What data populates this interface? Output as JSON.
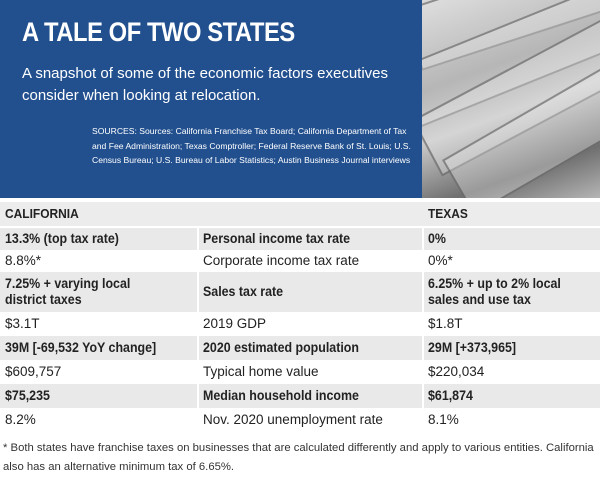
{
  "header": {
    "title": "A TALE OF TWO STATES",
    "subtitle": "A snapshot of some of the economic factors executives consider when looking at relocation.",
    "sources": "SOURCES: Sources: California Franchise Tax Board; California Department of Tax and Fee Administration; Texas Comptroller; Federal Reserve Bank of St. Louis; U.S. Census Bureau; U.S. Bureau of Labor Statistics; Austin Business Journal interviews"
  },
  "table": {
    "columns": [
      "CALIFORNIA",
      "TEXAS"
    ],
    "rows": [
      [
        "13.3% (top tax rate)",
        "Personal income tax rate",
        "0%"
      ],
      [
        "8.8%*",
        "Corporate income tax rate",
        "0%*"
      ],
      [
        "7.25% + varying local district taxes",
        "Sales tax rate",
        "6.25% + up to 2% local sales and use tax"
      ],
      [
        "$3.1T",
        "2019 GDP",
        "$1.8T"
      ],
      [
        "39M [-69,532 YoY change]",
        "2020 estimated population",
        "29M [+373,965]"
      ],
      [
        "$609,757",
        "Typical home value",
        "$220,034"
      ],
      [
        "$75,235",
        "Median household income",
        "$61,874"
      ],
      [
        "8.2%",
        "Nov. 2020 unemployment rate",
        "8.1%"
      ]
    ]
  },
  "footnote": "* Both states have franchise taxes on businesses that are calculated differently and apply to various entities. California also has an alternative minimum tax of 6.65%."
}
